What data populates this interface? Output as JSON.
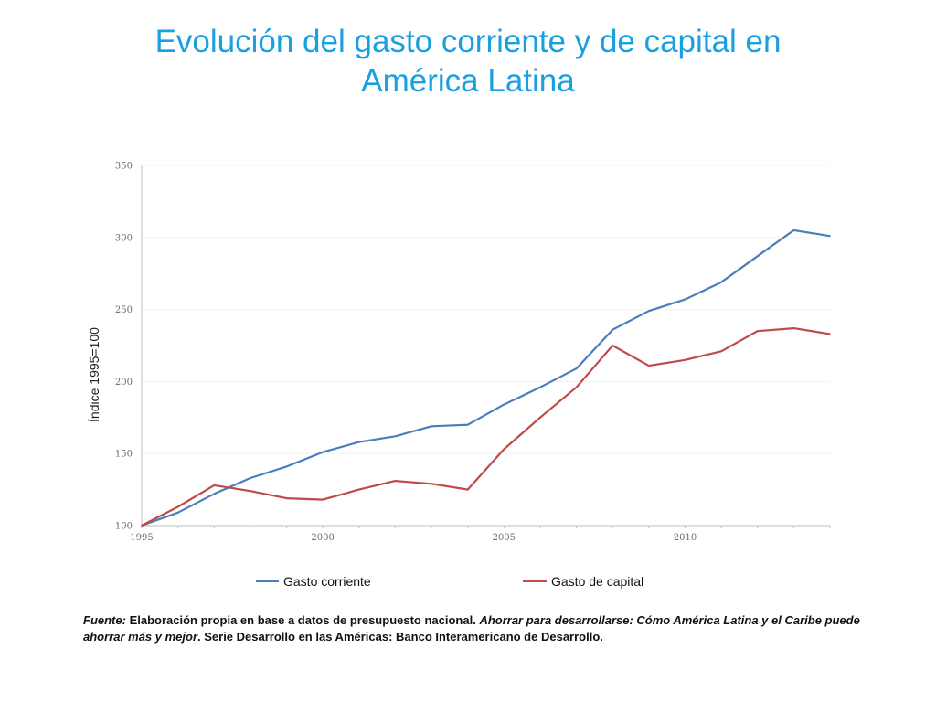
{
  "title": {
    "line1": "Evolución del gasto corriente y de capital en",
    "line2": "América Latina"
  },
  "colors": {
    "title": "#1aa0e0",
    "gasto_corriente": "#4a7ebb",
    "gasto_capital": "#be4b48",
    "grid": "#f0f0f0",
    "axis": "#bfbfbf"
  },
  "chart_data": {
    "type": "line",
    "title": "",
    "xlabel": "",
    "ylabel": "Índice 1995=100",
    "xlim": [
      1995,
      2014
    ],
    "ylim": [
      100,
      350
    ],
    "yticks": [
      100,
      150,
      200,
      250,
      300,
      350
    ],
    "xticks": [
      1995,
      2000,
      2005,
      2010
    ],
    "grid": "horizontal",
    "legend": "bottom",
    "x": [
      1995,
      1996,
      1997,
      1998,
      1999,
      2000,
      2001,
      2002,
      2003,
      2004,
      2005,
      2006,
      2007,
      2008,
      2009,
      2010,
      2011,
      2012,
      2013,
      2014
    ],
    "series": [
      {
        "name": "Gasto corriente",
        "values": [
          100,
          109,
          122,
          133,
          141,
          151,
          158,
          162,
          169,
          170,
          184,
          196,
          209,
          236,
          249,
          257,
          269,
          287,
          305,
          301
        ]
      },
      {
        "name": "Gasto de capital",
        "values": [
          100,
          113,
          128,
          124,
          119,
          118,
          125,
          131,
          129,
          125,
          153,
          175,
          196,
          225,
          211,
          215,
          221,
          235,
          237,
          233
        ]
      }
    ]
  },
  "source": {
    "label": "Fuente:",
    "text1": " Elaboración propia en base a datos de presupuesto nacional. ",
    "italic": "Ahorrar para desarrollarse: Cómo América Latina y el Caribe puede ahorrar más y mejor",
    "text2": ". Serie Desarrollo en las Américas: Banco Interamericano de Desarrollo."
  }
}
